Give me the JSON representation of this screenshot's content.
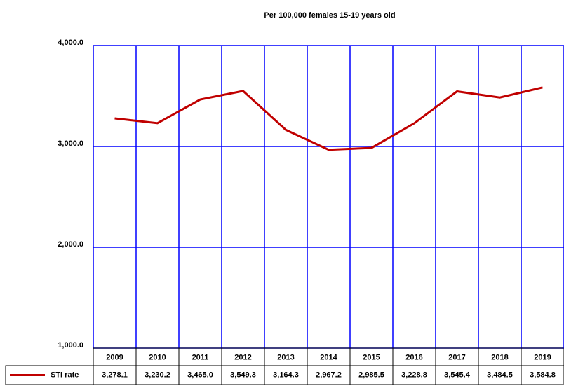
{
  "chart_data": {
    "type": "line",
    "title": "Per 100,000  females 15-19 years old",
    "categories": [
      "2009",
      "2010",
      "2011",
      "2012",
      "2013",
      "2014",
      "2015",
      "2016",
      "2017",
      "2018",
      "2019"
    ],
    "series": [
      {
        "name": "STI rate",
        "color": "#c00000",
        "values": [
          3278.1,
          3230.2,
          3465.0,
          3549.3,
          3164.3,
          2967.2,
          2985.5,
          3228.8,
          3545.4,
          3484.5,
          3584.8
        ],
        "value_labels": [
          "3,278.1",
          "3,230.2",
          "3,465.0",
          "3,549.3",
          "3,164.3",
          "2,967.2",
          "2,985.5",
          "3,228.8",
          "3,545.4",
          "3,484.5",
          "3,584.8"
        ]
      }
    ],
    "ylim": [
      1000,
      4000
    ],
    "yticks": [
      {
        "value": 1000,
        "label": "1,000.0"
      },
      {
        "value": 2000,
        "label": "2,000.0"
      },
      {
        "value": 3000,
        "label": "3,000.0"
      },
      {
        "value": 4000,
        "label": "4,000.0"
      }
    ],
    "grid": true
  }
}
